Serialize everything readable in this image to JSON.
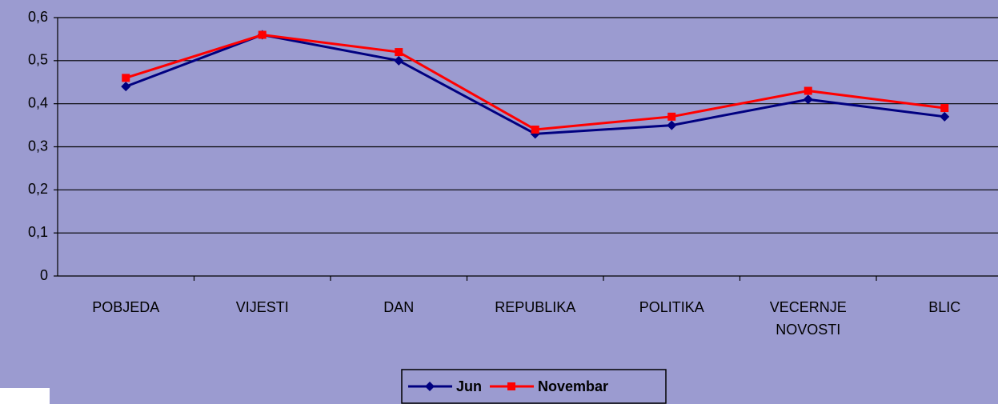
{
  "chart_data": {
    "type": "line",
    "categories": [
      "POBJEDA",
      "VIJESTI",
      "DAN",
      "REPUBLIKA",
      "POLITIKA",
      "VECERNJE NOVOSTI",
      "BLIC"
    ],
    "series": [
      {
        "name": "Jun",
        "color": "#000080",
        "values": [
          0.44,
          0.56,
          0.5,
          0.33,
          0.35,
          0.41,
          0.37
        ]
      },
      {
        "name": "Novembar",
        "color": "#ff0000",
        "values": [
          0.46,
          0.56,
          0.52,
          0.34,
          0.37,
          0.43,
          0.39
        ]
      }
    ],
    "ylim": [
      0,
      0.6
    ],
    "yticks": [
      0,
      {
        "value": 0.1,
        "label": "0,1"
      },
      {
        "value": 0.2,
        "label": "0,2"
      },
      {
        "value": 0.3,
        "label": "0,3"
      },
      {
        "value": 0.4,
        "label": "0,4"
      },
      {
        "value": 0.5,
        "label": "0,5"
      },
      {
        "value": 0.6,
        "label": "0,6"
      }
    ],
    "grid": true,
    "legend": "bottom"
  }
}
